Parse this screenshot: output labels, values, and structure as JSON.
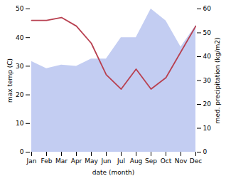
{
  "chart_data": {
    "type": "line",
    "categories": [
      "Jan",
      "Feb",
      "Mar",
      "Apr",
      "May",
      "Jun",
      "Jul",
      "Aug",
      "Sep",
      "Oct",
      "Nov",
      "Dec"
    ],
    "xlabel": "date (month)",
    "ylabel": "max temp (C)",
    "y2label": "med. precipitation (kg/m2)",
    "ylim": [
      0,
      50
    ],
    "yticks": [
      0,
      10,
      20,
      30,
      40,
      50
    ],
    "y2lim": [
      0,
      60
    ],
    "y2ticks": [
      0,
      10,
      20,
      30,
      40,
      50,
      60
    ],
    "grid": false,
    "series": [
      {
        "type": "area",
        "axis": "y2",
        "color": "#b8c4f0",
        "values": [
          38,
          35,
          36.5,
          36,
          39,
          39,
          48,
          48,
          60,
          55,
          44,
          53
        ]
      },
      {
        "type": "line",
        "color": "#b84050",
        "values": [
          46,
          46,
          47,
          44,
          38,
          27,
          22,
          29,
          22,
          26,
          35,
          44
        ]
      }
    ]
  }
}
